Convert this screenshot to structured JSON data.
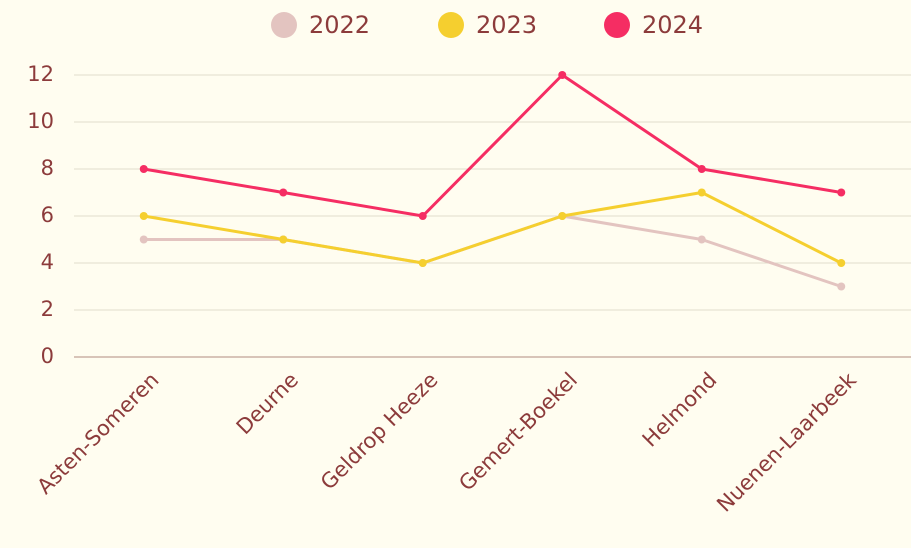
{
  "chart_data": {
    "type": "line",
    "categories": [
      "Asten-Someren",
      "Deurne",
      "Geldrop Heeze",
      "Gemert-Boekel",
      "Helmond",
      "Nuenen-Laarbeek"
    ],
    "series": [
      {
        "name": "2022",
        "color": "#e3c4c0",
        "values": [
          5,
          5,
          4,
          6,
          5,
          3
        ]
      },
      {
        "name": "2023",
        "color": "#f5cf2f",
        "values": [
          6,
          5,
          4,
          6,
          7,
          4
        ]
      },
      {
        "name": "2024",
        "color": "#f52d63",
        "values": [
          8,
          7,
          6,
          12,
          8,
          7
        ]
      }
    ],
    "ylim": [
      0,
      12
    ],
    "yticks": [
      0,
      2,
      4,
      6,
      8,
      10,
      12
    ],
    "grid": true,
    "legend": "top"
  }
}
